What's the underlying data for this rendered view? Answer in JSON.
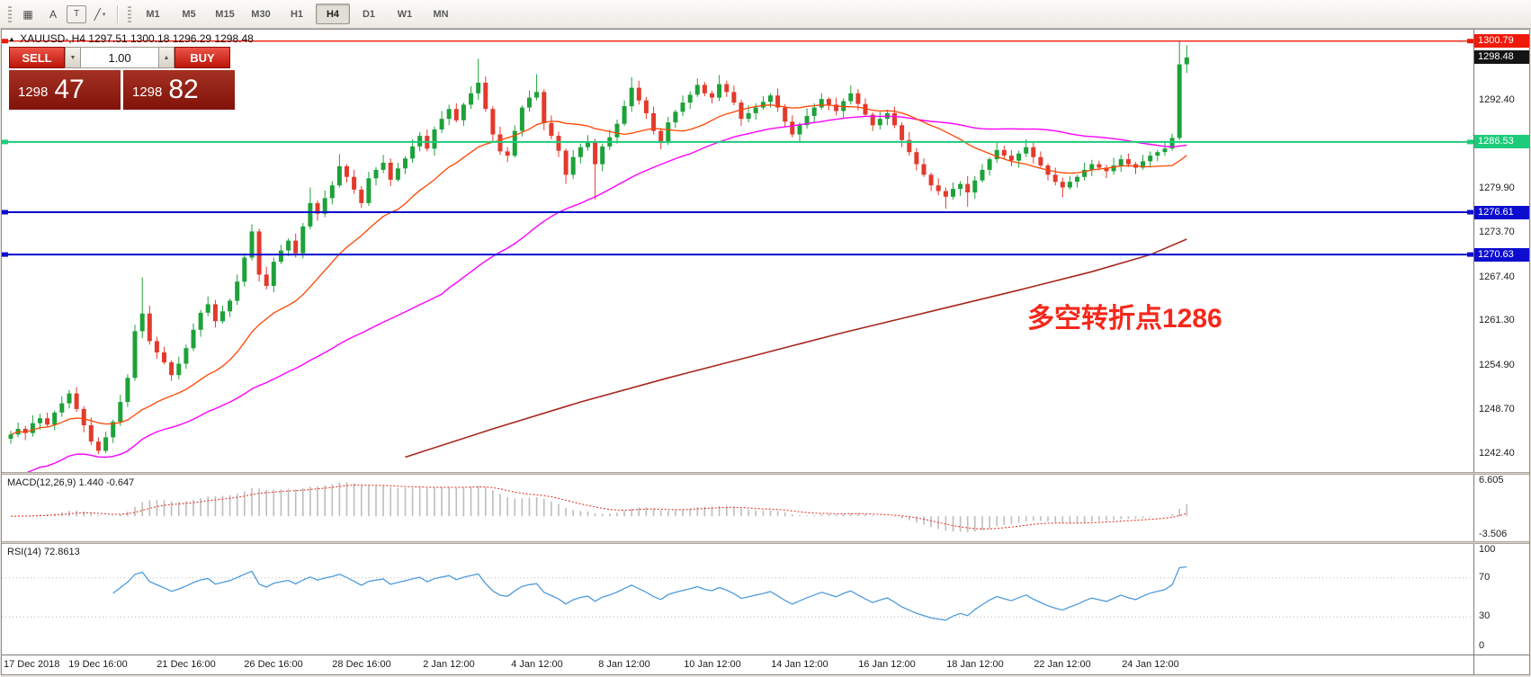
{
  "toolbar": {
    "tools": [
      {
        "name": "grid-tool-icon",
        "glyph": "▦"
      },
      {
        "name": "arrow-tool-icon",
        "glyph": "A"
      },
      {
        "name": "text-tool-icon",
        "glyph": "T",
        "boxed": true
      },
      {
        "name": "line-studies-icon",
        "glyph": "╱",
        "caret": true
      }
    ],
    "timeframes": [
      "M1",
      "M5",
      "M15",
      "M30",
      "H1",
      "H4",
      "D1",
      "W1",
      "MN"
    ],
    "active_timeframe": "H4"
  },
  "chart_header": {
    "symbol": "XAUUSD-,H4",
    "ohlc": "1297.51 1300.18 1296.29 1298.48"
  },
  "trade_panel": {
    "sell_label": "SELL",
    "buy_label": "BUY",
    "volume": "1.00",
    "bid_big": "1298",
    "bid_pips": "47",
    "ask_big": "1298",
    "ask_pips": "82"
  },
  "panes": {
    "macd": {
      "title": "MACD(12,26,9) 1.440 -0.647",
      "axis_values": [
        6.605,
        -3.506
      ]
    },
    "rsi": {
      "title": "RSI(14) 72.8613",
      "axis_values": [
        100,
        70,
        30,
        0
      ],
      "level_lines": [
        70,
        30
      ]
    }
  },
  "chart_data": {
    "type": "candlestick",
    "title": "XAUUSD- H4 candlestick chart with MA lines, MACD and RSI",
    "ylim": [
      1239.9,
      1302.4
    ],
    "annotation": {
      "text": "多空转折点1286",
      "color": "#f5281a"
    },
    "price_ticks": [
      1292.4,
      1279.9,
      1273.7,
      1267.4,
      1261.3,
      1254.9,
      1248.7,
      1242.4
    ],
    "levels": [
      {
        "label": "1300.79",
        "value": 1300.79,
        "color": "#f01a0a",
        "line": true,
        "width": 1.4
      },
      {
        "label": "1298.48",
        "value": 1298.48,
        "color": "#141414",
        "line": false,
        "width": 0
      },
      {
        "label": "1286.53",
        "value": 1286.53,
        "color": "#1ecb7a",
        "line": true,
        "width": 2
      },
      {
        "label": "1276.61",
        "value": 1276.61,
        "color": "#0d0dcf",
        "line": true,
        "width": 2
      },
      {
        "label": "1270.63",
        "value": 1270.63,
        "color": "#0d0dcf",
        "line": true,
        "width": 2
      }
    ],
    "time_labels": [
      "17 Dec 2018",
      "19 Dec 16:00",
      "21 Dec 16:00",
      "26 Dec 16:00",
      "28 Dec 16:00",
      "2 Jan 12:00",
      "4 Jan 12:00",
      "8 Jan 12:00",
      "10 Jan 12:00",
      "14 Jan 12:00",
      "16 Jan 12:00",
      "18 Jan 12:00",
      "22 Jan 12:00",
      "24 Jan 12:00"
    ],
    "colors": {
      "up": "#1da23a",
      "down": "#e23a2c",
      "ma_fast": "#ff4500",
      "ma_mid": "#ff00ff",
      "ma_slow": "#a8271d",
      "macd_hist": "#bdbdbd",
      "macd_signal": "#e8382c",
      "rsi": "#4f9bdc"
    },
    "ma_periods": {
      "fast": 20,
      "mid": 60
    },
    "ma_slow_anchors": [
      [
        54,
        1242.0
      ],
      [
        66,
        1246.0
      ],
      [
        78,
        1249.8
      ],
      [
        90,
        1253.2
      ],
      [
        102,
        1256.4
      ],
      [
        114,
        1259.6
      ],
      [
        126,
        1262.6
      ],
      [
        138,
        1265.6
      ],
      [
        148,
        1268.2
      ],
      [
        156,
        1270.6
      ],
      [
        161,
        1272.8
      ]
    ],
    "candles": [
      [
        1244.6,
        1245.7,
        1243.9,
        1245.2
      ],
      [
        1245.2,
        1246.9,
        1244.8,
        1246.0
      ],
      [
        1246.0,
        1246.4,
        1244.4,
        1245.4
      ],
      [
        1245.4,
        1247.9,
        1244.9,
        1246.8
      ],
      [
        1246.8,
        1248.1,
        1245.9,
        1247.5
      ],
      [
        1247.5,
        1248.3,
        1246.3,
        1246.6
      ],
      [
        1246.6,
        1248.6,
        1245.8,
        1248.3
      ],
      [
        1248.3,
        1250.6,
        1247.7,
        1249.6
      ],
      [
        1249.6,
        1251.5,
        1248.9,
        1251.0
      ],
      [
        1251.0,
        1251.9,
        1248.4,
        1248.8
      ],
      [
        1248.8,
        1249.2,
        1245.5,
        1246.5
      ],
      [
        1246.5,
        1247.6,
        1243.7,
        1244.2
      ],
      [
        1244.2,
        1244.8,
        1242.4,
        1242.9
      ],
      [
        1242.9,
        1245.6,
        1242.6,
        1244.8
      ],
      [
        1244.8,
        1247.3,
        1244.0,
        1247.0
      ],
      [
        1247.0,
        1250.8,
        1246.4,
        1249.8
      ],
      [
        1249.8,
        1253.7,
        1249.1,
        1253.2
      ],
      [
        1253.2,
        1260.7,
        1252.8,
        1259.8
      ],
      [
        1259.8,
        1267.4,
        1258.8,
        1262.3
      ],
      [
        1262.3,
        1263.4,
        1257.9,
        1258.4
      ],
      [
        1258.4,
        1259.0,
        1255.9,
        1256.8
      ],
      [
        1256.8,
        1257.6,
        1255.1,
        1255.4
      ],
      [
        1255.4,
        1255.7,
        1252.8,
        1253.6
      ],
      [
        1253.6,
        1256.2,
        1253.0,
        1255.2
      ],
      [
        1255.2,
        1257.9,
        1254.5,
        1257.4
      ],
      [
        1257.4,
        1260.9,
        1257.0,
        1260.0
      ],
      [
        1260.0,
        1262.8,
        1259.0,
        1262.4
      ],
      [
        1262.4,
        1264.7,
        1261.9,
        1263.6
      ],
      [
        1263.6,
        1264.2,
        1260.3,
        1261.2
      ],
      [
        1261.2,
        1263.4,
        1260.9,
        1262.6
      ],
      [
        1262.6,
        1264.4,
        1261.8,
        1264.1
      ],
      [
        1264.1,
        1267.8,
        1263.5,
        1266.8
      ],
      [
        1266.8,
        1270.7,
        1266.1,
        1270.2
      ],
      [
        1270.2,
        1274.9,
        1269.8,
        1273.9
      ],
      [
        1273.9,
        1274.3,
        1266.8,
        1267.8
      ],
      [
        1267.8,
        1268.9,
        1265.7,
        1266.2
      ],
      [
        1266.2,
        1270.2,
        1265.3,
        1269.6
      ],
      [
        1269.6,
        1272.0,
        1269.3,
        1271.2
      ],
      [
        1271.2,
        1272.9,
        1270.4,
        1272.6
      ],
      [
        1272.6,
        1273.6,
        1270.2,
        1270.8
      ],
      [
        1270.8,
        1275.1,
        1270.1,
        1274.6
      ],
      [
        1274.6,
        1280.1,
        1274.2,
        1277.9
      ],
      [
        1277.9,
        1278.3,
        1275.4,
        1276.4
      ],
      [
        1276.4,
        1279.7,
        1275.9,
        1278.6
      ],
      [
        1278.6,
        1281.0,
        1277.7,
        1280.4
      ],
      [
        1280.4,
        1284.8,
        1280.1,
        1283.1
      ],
      [
        1283.1,
        1283.4,
        1280.8,
        1281.6
      ],
      [
        1281.6,
        1282.6,
        1279.2,
        1279.8
      ],
      [
        1279.8,
        1280.3,
        1277.2,
        1277.9
      ],
      [
        1277.9,
        1282.3,
        1277.5,
        1281.4
      ],
      [
        1281.4,
        1283.0,
        1280.4,
        1282.6
      ],
      [
        1282.6,
        1284.7,
        1282.1,
        1283.6
      ],
      [
        1283.6,
        1284.2,
        1280.3,
        1281.2
      ],
      [
        1281.2,
        1283.6,
        1280.9,
        1282.8
      ],
      [
        1282.8,
        1284.5,
        1282.0,
        1284.2
      ],
      [
        1284.2,
        1286.9,
        1283.6,
        1285.9
      ],
      [
        1285.9,
        1287.9,
        1285.2,
        1287.4
      ],
      [
        1287.4,
        1288.3,
        1285.2,
        1285.6
      ],
      [
        1285.6,
        1288.7,
        1284.6,
        1288.3
      ],
      [
        1288.3,
        1290.9,
        1287.8,
        1289.8
      ],
      [
        1289.8,
        1291.8,
        1288.9,
        1291.2
      ],
      [
        1291.2,
        1292.0,
        1289.3,
        1289.6
      ],
      [
        1289.6,
        1292.1,
        1288.8,
        1291.8
      ],
      [
        1291.8,
        1294.4,
        1291.2,
        1293.4
      ],
      [
        1293.4,
        1298.3,
        1292.5,
        1294.9
      ],
      [
        1294.9,
        1295.8,
        1290.8,
        1291.2
      ],
      [
        1291.2,
        1291.6,
        1286.6,
        1287.6
      ],
      [
        1287.6,
        1288.7,
        1284.7,
        1285.2
      ],
      [
        1285.2,
        1285.8,
        1283.7,
        1284.6
      ],
      [
        1284.6,
        1288.9,
        1284.3,
        1288.1
      ],
      [
        1288.1,
        1291.7,
        1287.3,
        1291.4
      ],
      [
        1291.4,
        1293.8,
        1290.8,
        1292.8
      ],
      [
        1292.8,
        1296.1,
        1292.4,
        1293.6
      ],
      [
        1293.6,
        1294.0,
        1288.2,
        1289.2
      ],
      [
        1289.2,
        1290.3,
        1286.9,
        1287.4
      ],
      [
        1287.4,
        1288.0,
        1284.4,
        1285.3
      ],
      [
        1285.3,
        1285.6,
        1280.6,
        1281.9
      ],
      [
        1281.9,
        1285.4,
        1281.3,
        1284.4
      ],
      [
        1284.4,
        1286.3,
        1283.5,
        1285.8
      ],
      [
        1285.8,
        1287.5,
        1285.3,
        1286.6
      ],
      [
        1286.6,
        1287.0,
        1278.4,
        1283.4
      ],
      [
        1283.4,
        1286.3,
        1282.4,
        1285.9
      ],
      [
        1285.9,
        1288.3,
        1285.4,
        1287.2
      ],
      [
        1287.2,
        1289.7,
        1286.3,
        1289.1
      ],
      [
        1289.1,
        1292.4,
        1288.8,
        1291.6
      ],
      [
        1291.6,
        1295.7,
        1290.8,
        1294.2
      ],
      [
        1294.2,
        1295.2,
        1291.8,
        1292.4
      ],
      [
        1292.4,
        1292.9,
        1289.8,
        1290.6
      ],
      [
        1290.6,
        1291.5,
        1287.6,
        1288.1
      ],
      [
        1288.1,
        1288.5,
        1285.5,
        1286.4
      ],
      [
        1286.4,
        1290.1,
        1286.1,
        1289.3
      ],
      [
        1289.3,
        1291.1,
        1288.5,
        1290.8
      ],
      [
        1290.8,
        1293.1,
        1290.2,
        1292.1
      ],
      [
        1292.1,
        1293.7,
        1291.2,
        1293.2
      ],
      [
        1293.2,
        1295.5,
        1292.9,
        1294.6
      ],
      [
        1294.6,
        1295.0,
        1293.0,
        1293.4
      ],
      [
        1293.4,
        1293.8,
        1292.0,
        1292.8
      ],
      [
        1292.8,
        1296.0,
        1292.3,
        1294.7
      ],
      [
        1294.7,
        1295.2,
        1292.9,
        1293.6
      ],
      [
        1293.6,
        1294.5,
        1291.7,
        1292.1
      ],
      [
        1292.1,
        1292.5,
        1288.8,
        1289.8
      ],
      [
        1289.8,
        1291.7,
        1289.3,
        1290.6
      ],
      [
        1290.6,
        1292.0,
        1289.7,
        1291.4
      ],
      [
        1291.4,
        1293.0,
        1291.1,
        1292.2
      ],
      [
        1292.2,
        1293.4,
        1291.4,
        1293.1
      ],
      [
        1293.1,
        1294.1,
        1290.8,
        1291.4
      ],
      [
        1291.4,
        1291.9,
        1288.7,
        1289.4
      ],
      [
        1289.4,
        1290.3,
        1287.2,
        1287.6
      ],
      [
        1287.6,
        1289.3,
        1286.6,
        1288.9
      ],
      [
        1288.9,
        1291.3,
        1288.4,
        1290.2
      ],
      [
        1290.2,
        1292.0,
        1289.3,
        1291.4
      ],
      [
        1291.4,
        1293.4,
        1291.1,
        1292.6
      ],
      [
        1292.6,
        1292.9,
        1291.0,
        1291.8
      ],
      [
        1291.8,
        1292.8,
        1290.3,
        1290.9
      ],
      [
        1290.9,
        1292.7,
        1289.9,
        1292.3
      ],
      [
        1292.3,
        1294.5,
        1291.8,
        1293.4
      ],
      [
        1293.4,
        1294.0,
        1291.0,
        1291.9
      ],
      [
        1291.9,
        1292.7,
        1290.1,
        1290.4
      ],
      [
        1290.4,
        1290.7,
        1288.1,
        1288.9
      ],
      [
        1288.9,
        1290.8,
        1288.3,
        1289.8
      ],
      [
        1289.8,
        1291.1,
        1288.9,
        1290.6
      ],
      [
        1290.6,
        1291.5,
        1288.5,
        1288.9
      ],
      [
        1288.9,
        1289.3,
        1285.8,
        1286.8
      ],
      [
        1286.8,
        1287.9,
        1284.6,
        1285.1
      ],
      [
        1285.1,
        1285.7,
        1282.5,
        1283.4
      ],
      [
        1283.4,
        1284.2,
        1281.6,
        1281.9
      ],
      [
        1281.9,
        1282.2,
        1279.6,
        1280.4
      ],
      [
        1280.4,
        1281.4,
        1279.0,
        1279.6
      ],
      [
        1279.6,
        1280.1,
        1277.1,
        1278.8
      ],
      [
        1278.8,
        1280.8,
        1278.4,
        1279.9
      ],
      [
        1279.9,
        1281.0,
        1278.9,
        1280.6
      ],
      [
        1280.6,
        1281.7,
        1277.4,
        1279.4
      ],
      [
        1279.4,
        1281.7,
        1278.5,
        1281.1
      ],
      [
        1281.1,
        1283.4,
        1280.8,
        1282.6
      ],
      [
        1282.6,
        1284.4,
        1281.8,
        1284.1
      ],
      [
        1284.1,
        1286.4,
        1283.6,
        1285.4
      ],
      [
        1285.4,
        1286.0,
        1284.1,
        1284.6
      ],
      [
        1284.6,
        1285.4,
        1283.1,
        1283.9
      ],
      [
        1283.9,
        1285.3,
        1282.9,
        1284.9
      ],
      [
        1284.9,
        1286.9,
        1284.4,
        1285.8
      ],
      [
        1285.8,
        1286.4,
        1283.5,
        1284.4
      ],
      [
        1284.4,
        1285.2,
        1282.9,
        1283.2
      ],
      [
        1283.2,
        1283.5,
        1281.1,
        1281.9
      ],
      [
        1281.9,
        1282.9,
        1280.4,
        1280.9
      ],
      [
        1280.9,
        1281.5,
        1278.7,
        1280.1
      ],
      [
        1280.1,
        1281.7,
        1279.8,
        1280.9
      ],
      [
        1280.9,
        1281.9,
        1280.1,
        1281.6
      ],
      [
        1281.6,
        1283.6,
        1281.1,
        1282.6
      ],
      [
        1282.6,
        1284.0,
        1281.7,
        1283.4
      ],
      [
        1283.4,
        1283.9,
        1282.5,
        1282.9
      ],
      [
        1282.9,
        1283.3,
        1281.4,
        1282.4
      ],
      [
        1282.4,
        1284.3,
        1281.9,
        1283.2
      ],
      [
        1283.2,
        1284.7,
        1282.3,
        1284.1
      ],
      [
        1284.1,
        1284.9,
        1283.0,
        1283.4
      ],
      [
        1283.4,
        1283.7,
        1282.0,
        1282.9
      ],
      [
        1282.9,
        1284.7,
        1282.6,
        1283.8
      ],
      [
        1283.8,
        1285.2,
        1282.9,
        1284.6
      ],
      [
        1284.6,
        1285.4,
        1283.8,
        1285.1
      ],
      [
        1285.1,
        1286.7,
        1284.6,
        1285.6
      ],
      [
        1285.6,
        1287.7,
        1285.3,
        1287.1
      ],
      [
        1287.1,
        1300.79,
        1286.8,
        1297.5
      ],
      [
        1297.51,
        1300.18,
        1296.29,
        1298.48
      ]
    ]
  }
}
